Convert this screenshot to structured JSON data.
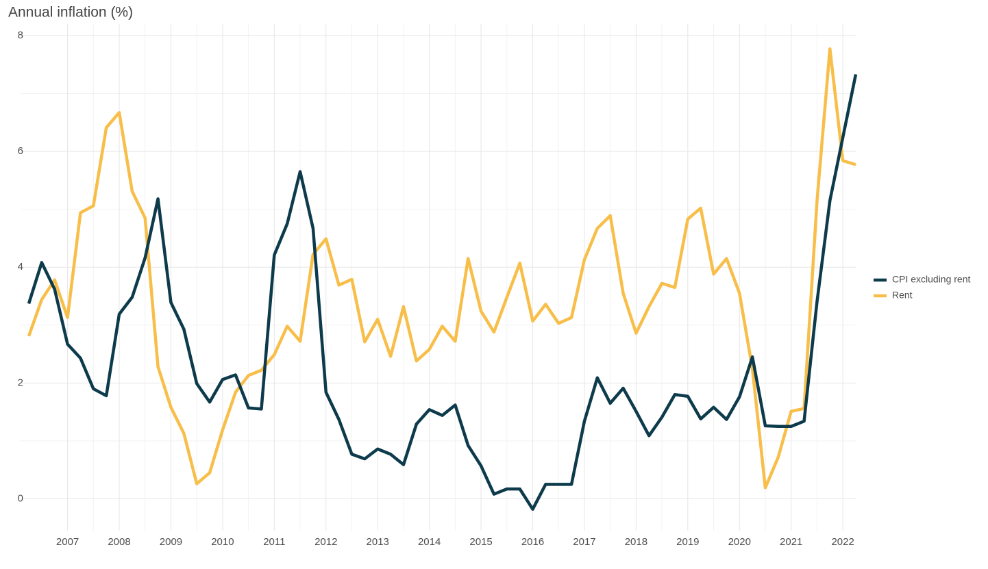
{
  "chart_data": {
    "type": "line",
    "title": "Annual inflation (%)",
    "x": [
      2006.25,
      2006.5,
      2006.75,
      2007,
      2007.25,
      2007.5,
      2007.75,
      2008,
      2008.25,
      2008.5,
      2008.75,
      2009,
      2009.25,
      2009.5,
      2009.75,
      2010,
      2010.25,
      2010.5,
      2010.75,
      2011,
      2011.25,
      2011.5,
      2011.75,
      2012,
      2012.25,
      2012.5,
      2012.75,
      2013,
      2013.25,
      2013.5,
      2013.75,
      2014,
      2014.25,
      2014.5,
      2014.75,
      2015,
      2015.25,
      2015.5,
      2015.75,
      2016,
      2016.25,
      2016.5,
      2016.75,
      2017,
      2017.25,
      2017.5,
      2017.75,
      2018,
      2018.25,
      2018.5,
      2018.75,
      2019,
      2019.25,
      2019.5,
      2019.75,
      2020,
      2020.25,
      2020.5,
      2020.75,
      2021,
      2021.25,
      2021.5,
      2021.75,
      2022,
      2022.25
    ],
    "series": [
      {
        "name": "CPI excluding rent",
        "color": "#0d3b4c",
        "values": [
          3.37,
          4.08,
          3.62,
          2.67,
          2.43,
          1.9,
          1.78,
          3.19,
          3.48,
          4.16,
          5.18,
          3.39,
          2.93,
          1.99,
          1.67,
          2.06,
          2.14,
          1.57,
          1.55,
          4.21,
          4.75,
          5.65,
          4.67,
          1.84,
          1.37,
          0.77,
          0.69,
          0.86,
          0.77,
          0.59,
          1.29,
          1.54,
          1.44,
          1.62,
          0.92,
          0.57,
          0.08,
          0.17,
          0.17,
          -0.18,
          0.25,
          0.25,
          0.25,
          1.34,
          2.09,
          1.65,
          1.91,
          1.51,
          1.09,
          1.41,
          1.8,
          1.77,
          1.38,
          1.58,
          1.37,
          1.76,
          2.45,
          1.26,
          1.25,
          1.25,
          1.34,
          3.4,
          5.15,
          6.24,
          7.33
        ]
      },
      {
        "name": "Rent",
        "color": "#f8be4a",
        "values": [
          2.81,
          3.44,
          3.78,
          3.13,
          4.94,
          5.06,
          6.41,
          6.67,
          5.31,
          4.85,
          2.28,
          1.58,
          1.13,
          0.26,
          0.45,
          1.19,
          1.84,
          2.13,
          2.22,
          2.49,
          2.98,
          2.72,
          4.22,
          4.49,
          3.69,
          3.79,
          2.71,
          3.1,
          2.46,
          3.32,
          2.38,
          2.58,
          2.98,
          2.72,
          4.15,
          3.24,
          2.88,
          3.48,
          4.07,
          3.07,
          3.36,
          3.03,
          3.13,
          4.13,
          4.67,
          4.89,
          3.55,
          2.86,
          3.32,
          3.72,
          3.65,
          4.83,
          5.02,
          3.88,
          4.15,
          3.55,
          2.25,
          0.19,
          0.72,
          1.51,
          1.56,
          5.14,
          7.77,
          5.84,
          5.77
        ]
      }
    ],
    "xlim": [
      2006.25,
      2022.25
    ],
    "xticks": [
      2007,
      2008,
      2009,
      2010,
      2011,
      2012,
      2013,
      2014,
      2015,
      2016,
      2017,
      2018,
      2019,
      2020,
      2021,
      2022
    ],
    "ylim": [
      -0.55,
      8.2
    ],
    "yticks": [
      0,
      2,
      4,
      6,
      8
    ],
    "grid": true,
    "legend": "right"
  }
}
